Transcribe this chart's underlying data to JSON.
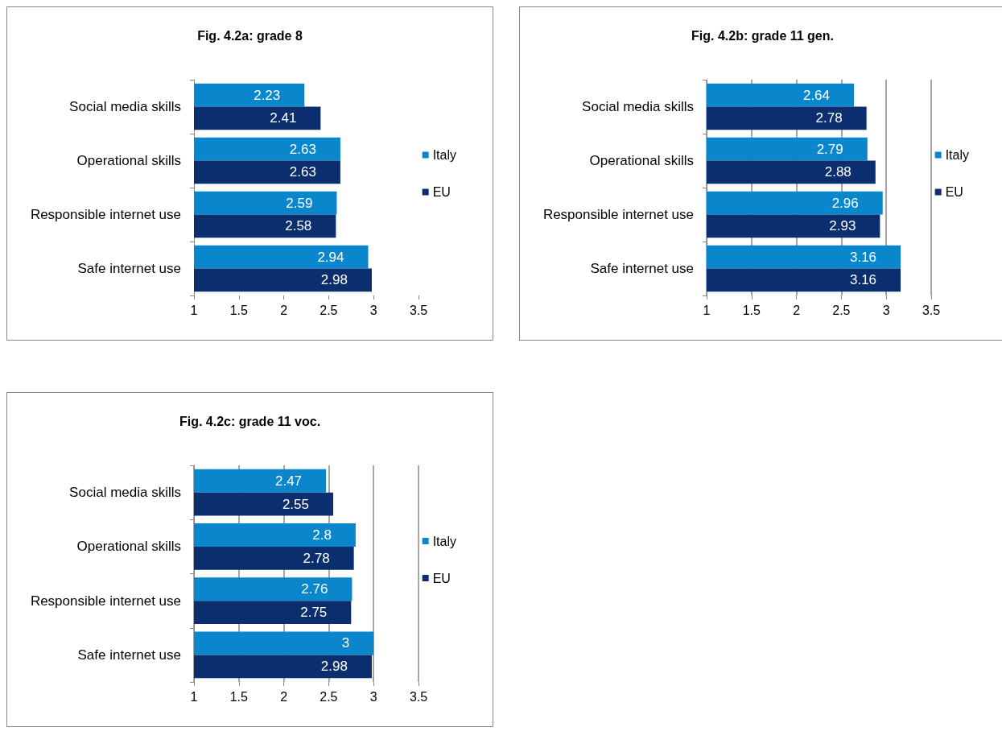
{
  "chart_data": [
    {
      "type": "bar",
      "title": "Fig. 4.2a: grade 8",
      "orientation": "horizontal",
      "categories": [
        "Social media skills",
        "Operational skills",
        "Responsible internet use",
        "Safe internet use"
      ],
      "series": [
        {
          "name": "Italy",
          "color": "#0a86cc",
          "values": [
            2.23,
            2.63,
            2.59,
            2.94
          ]
        },
        {
          "name": "EU",
          "color": "#0b2f6e",
          "values": [
            2.41,
            2.63,
            2.58,
            2.98
          ]
        }
      ],
      "xlim": [
        1,
        3.5
      ],
      "xticks": [
        1,
        1.5,
        2,
        2.5,
        3,
        3.5
      ],
      "grid": false,
      "legend": "right",
      "data_labels": true
    },
    {
      "type": "bar",
      "title": "Fig. 4.2b: grade 11 gen.",
      "orientation": "horizontal",
      "categories": [
        "Social media skills",
        "Operational skills",
        "Responsible internet use",
        "Safe internet use"
      ],
      "series": [
        {
          "name": "Italy",
          "color": "#0a86cc",
          "values": [
            2.64,
            2.79,
            2.96,
            3.16
          ]
        },
        {
          "name": "EU",
          "color": "#0b2f6e",
          "values": [
            2.78,
            2.88,
            2.93,
            3.16
          ]
        }
      ],
      "xlim": [
        1,
        3.5
      ],
      "xticks": [
        1,
        1.5,
        2,
        2.5,
        3,
        3.5
      ],
      "grid": "x",
      "legend": "right",
      "data_labels": true
    },
    {
      "type": "bar",
      "title": "Fig. 4.2c: grade 11 voc.",
      "orientation": "horizontal",
      "categories": [
        "Social media skills",
        "Operational skills",
        "Responsible internet use",
        "Safe internet use"
      ],
      "series": [
        {
          "name": "Italy",
          "color": "#0a86cc",
          "values": [
            2.47,
            2.8,
            2.76,
            3
          ]
        },
        {
          "name": "EU",
          "color": "#0b2f6e",
          "values": [
            2.55,
            2.78,
            2.75,
            2.98
          ]
        }
      ],
      "xlim": [
        1,
        3.5
      ],
      "xticks": [
        1,
        1.5,
        2,
        2.5,
        3,
        3.5
      ],
      "grid": "x",
      "legend": "right",
      "data_labels": true
    }
  ]
}
